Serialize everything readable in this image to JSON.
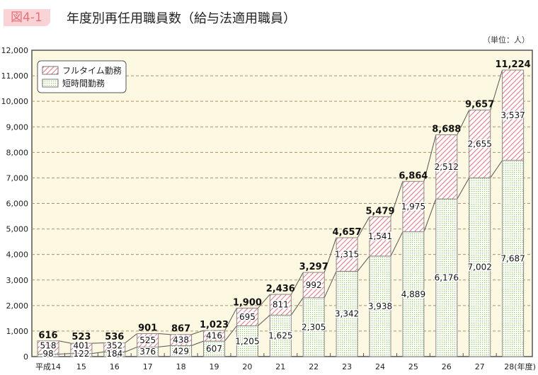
{
  "figure_label": "図4-1",
  "title": "年度別再任用職員数（給与法適用職員）",
  "unit": "（単位：人）",
  "colors": {
    "fulltime": "#e8707c",
    "shorttime": "#8cc65a",
    "background": "#fdf8e1"
  },
  "chart_data": {
    "type": "bar",
    "stacked": true,
    "title": "年度別再任用職員数（給与法適用職員）",
    "categories": [
      "平成14",
      "15",
      "16",
      "17",
      "18",
      "19",
      "20",
      "21",
      "22",
      "23",
      "24",
      "25",
      "26",
      "27",
      "28(年度)"
    ],
    "series": [
      {
        "name": "短時間勤務",
        "pattern": "dots",
        "values": [
          98,
          122,
          184,
          376,
          429,
          607,
          1205,
          1625,
          2305,
          3342,
          3938,
          4889,
          6176,
          7002,
          7687
        ]
      },
      {
        "name": "フルタイム勤務",
        "pattern": "hatch",
        "values": [
          518,
          401,
          352,
          525,
          438,
          416,
          695,
          811,
          992,
          1315,
          1541,
          1975,
          2512,
          2655,
          3537
        ]
      }
    ],
    "totals": [
      616,
      523,
      536,
      901,
      867,
      1023,
      1900,
      2436,
      3297,
      4657,
      5479,
      6864,
      8688,
      9657,
      11224
    ],
    "ylim": [
      0,
      12000
    ],
    "yticks": [
      "0",
      "1,000",
      "2,000",
      "3,000",
      "4,000",
      "5,000",
      "6,000",
      "7,000",
      "8,000",
      "9,000",
      "10,000",
      "11,000",
      "12,000"
    ],
    "grid": true,
    "legend": "top-left"
  }
}
